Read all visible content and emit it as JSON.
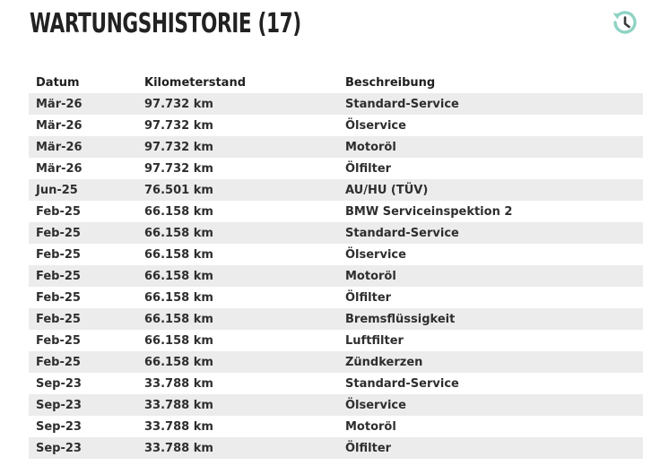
{
  "header": {
    "title": "WARTUNGSHISTORIE (17)",
    "icon": "history-icon",
    "icon_color": "#8fd3c4",
    "icon_hand_color": "#3a3a3a"
  },
  "table": {
    "columns": {
      "date": "Datum",
      "mileage": "Kilometerstand",
      "description": "Beschreibung"
    },
    "stripe_color": "#ececec",
    "rows": [
      {
        "date": "Mär-26",
        "mileage": "97.732 km",
        "description": "Standard-Service"
      },
      {
        "date": "Mär-26",
        "mileage": "97.732 km",
        "description": "Ölservice"
      },
      {
        "date": "Mär-26",
        "mileage": "97.732 km",
        "description": "Motoröl"
      },
      {
        "date": "Mär-26",
        "mileage": "97.732 km",
        "description": "Ölfilter"
      },
      {
        "date": "Jun-25",
        "mileage": "76.501 km",
        "description": "AU/HU (TÜV)"
      },
      {
        "date": "Feb-25",
        "mileage": "66.158 km",
        "description": "BMW Serviceinspektion 2"
      },
      {
        "date": "Feb-25",
        "mileage": "66.158 km",
        "description": "Standard-Service"
      },
      {
        "date": "Feb-25",
        "mileage": "66.158 km",
        "description": "Ölservice"
      },
      {
        "date": "Feb-25",
        "mileage": "66.158 km",
        "description": "Motoröl"
      },
      {
        "date": "Feb-25",
        "mileage": "66.158 km",
        "description": "Ölfilter"
      },
      {
        "date": "Feb-25",
        "mileage": "66.158 km",
        "description": "Bremsflüssigkeit"
      },
      {
        "date": "Feb-25",
        "mileage": "66.158 km",
        "description": "Luftfilter"
      },
      {
        "date": "Feb-25",
        "mileage": "66.158 km",
        "description": "Zündkerzen"
      },
      {
        "date": "Sep-23",
        "mileage": "33.788 km",
        "description": "Standard-Service"
      },
      {
        "date": "Sep-23",
        "mileage": "33.788 km",
        "description": "Ölservice"
      },
      {
        "date": "Sep-23",
        "mileage": "33.788 km",
        "description": "Motoröl"
      },
      {
        "date": "Sep-23",
        "mileage": "33.788 km",
        "description": "Ölfilter"
      }
    ]
  }
}
